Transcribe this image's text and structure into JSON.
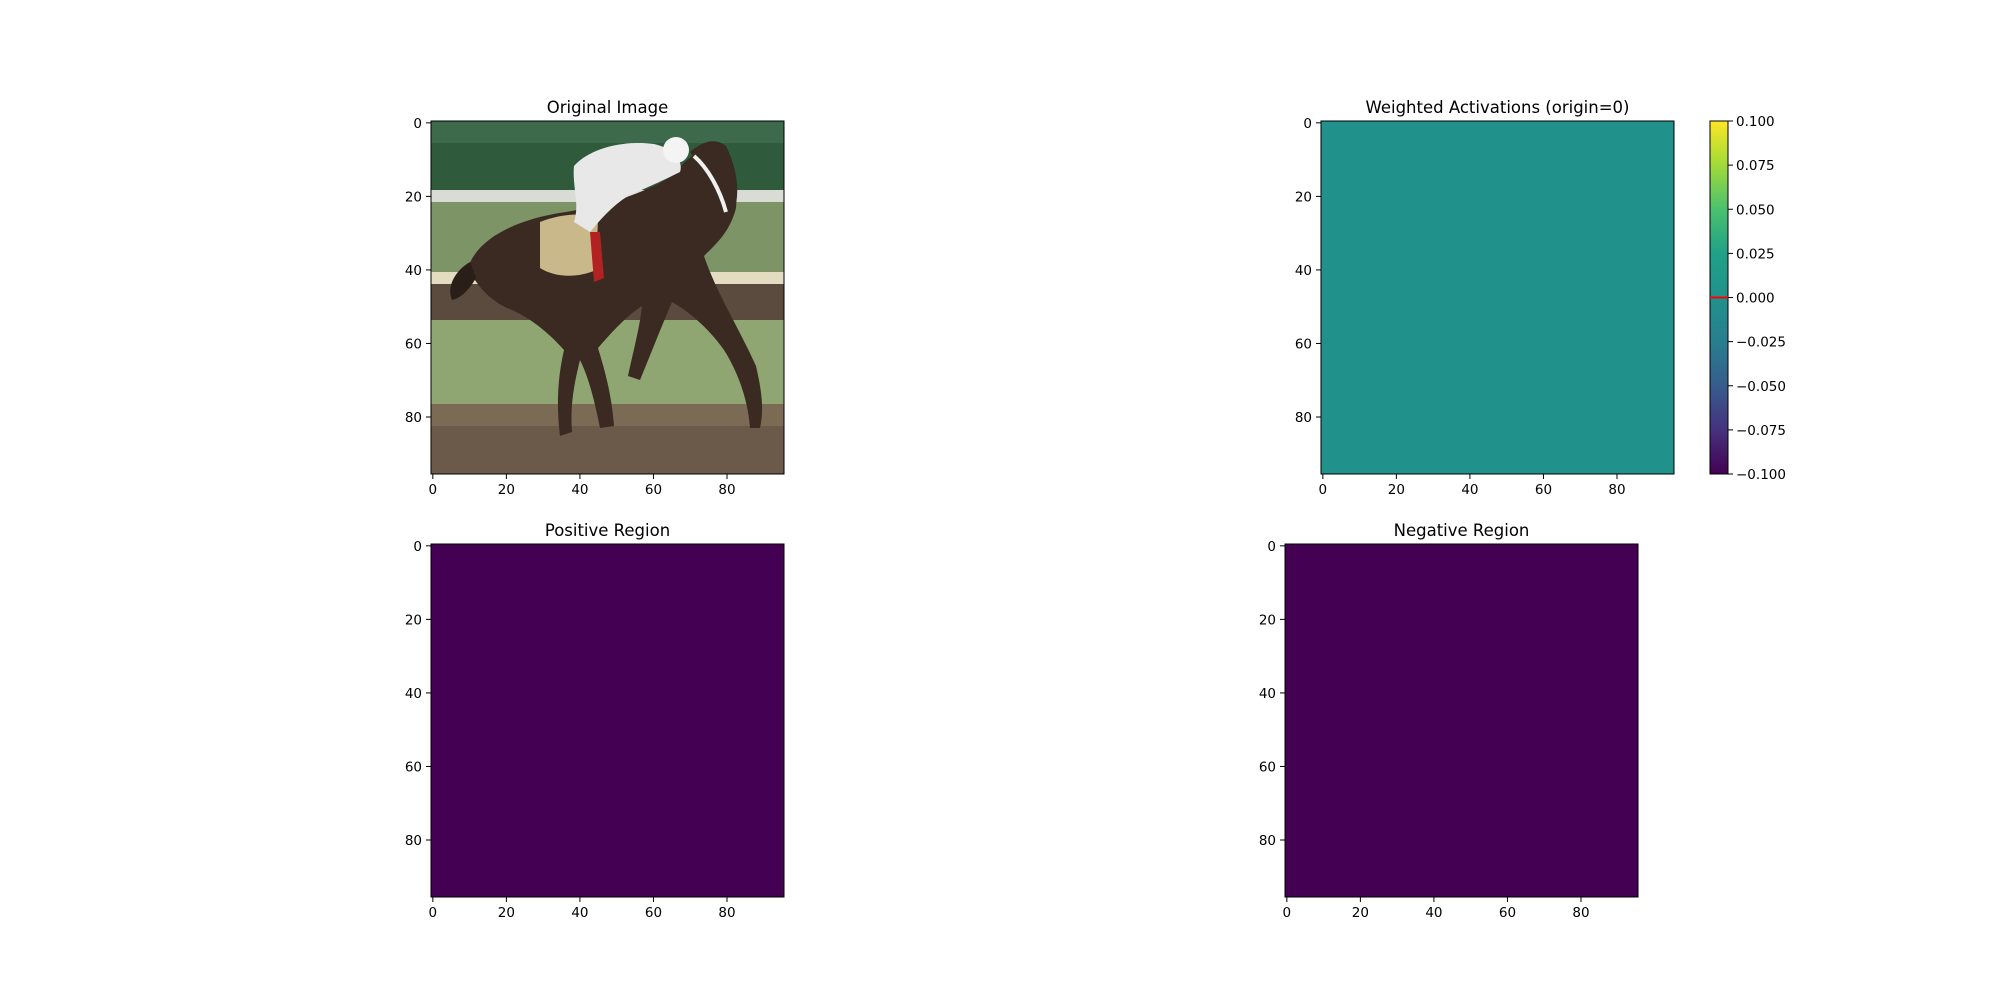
{
  "figure": {
    "background": "#ffffff",
    "frame_color": "#000000"
  },
  "chart_data": [
    {
      "id": "original",
      "type": "image",
      "title": "Original Image",
      "content": "photo of a jockey riding a dark brown racehorse on a dirt track",
      "xlim": [
        -0.5,
        95.5
      ],
      "ylim": [
        95.5,
        -0.5
      ],
      "xticks": [
        0,
        20,
        40,
        60,
        80
      ],
      "yticks": [
        0,
        20,
        40,
        60,
        80
      ],
      "palette": {
        "trees": "#2f5a3c",
        "rail": "#d9dcd4",
        "grass": "#8fa672",
        "dirt": "#6b5a4a",
        "horse": "#3a2a22",
        "jockey": "#e8e8e8",
        "saddle_cloth": "#c9b98a"
      }
    },
    {
      "id": "weighted",
      "type": "heatmap",
      "title": "Weighted Activations (origin=0)",
      "colormap": "viridis",
      "fill_value": 0.0,
      "fill_color": "#21918c",
      "xlim": [
        -0.5,
        95.5
      ],
      "ylim": [
        95.5,
        -0.5
      ],
      "xticks": [
        0,
        20,
        40,
        60,
        80
      ],
      "yticks": [
        0,
        20,
        40,
        60,
        80
      ],
      "colorbar": {
        "vmin": -0.1,
        "vmax": 0.1,
        "ticks": [
          0.1,
          0.075,
          0.05,
          0.025,
          0.0,
          -0.025,
          -0.05,
          -0.075,
          -0.1
        ],
        "tick_labels": [
          "0.100",
          "0.075",
          "0.050",
          "0.025",
          "0.000",
          "−0.025",
          "−0.050",
          "−0.075",
          "−0.100"
        ],
        "marker_value": 0.0,
        "marker_color": "#ff0000"
      }
    },
    {
      "id": "positive",
      "type": "heatmap",
      "title": "Positive Region",
      "colormap": "viridis",
      "fill_color": "#440154",
      "xlim": [
        -0.5,
        95.5
      ],
      "ylim": [
        95.5,
        -0.5
      ],
      "xticks": [
        0,
        20,
        40,
        60,
        80
      ],
      "yticks": [
        0,
        20,
        40,
        60,
        80
      ]
    },
    {
      "id": "negative",
      "type": "heatmap",
      "title": "Negative Region",
      "colormap": "viridis",
      "fill_color": "#440154",
      "xlim": [
        -0.5,
        95.5
      ],
      "ylim": [
        95.5,
        -0.5
      ],
      "xticks": [
        0,
        20,
        40,
        60,
        80
      ],
      "yticks": [
        0,
        20,
        40,
        60,
        80
      ]
    }
  ]
}
